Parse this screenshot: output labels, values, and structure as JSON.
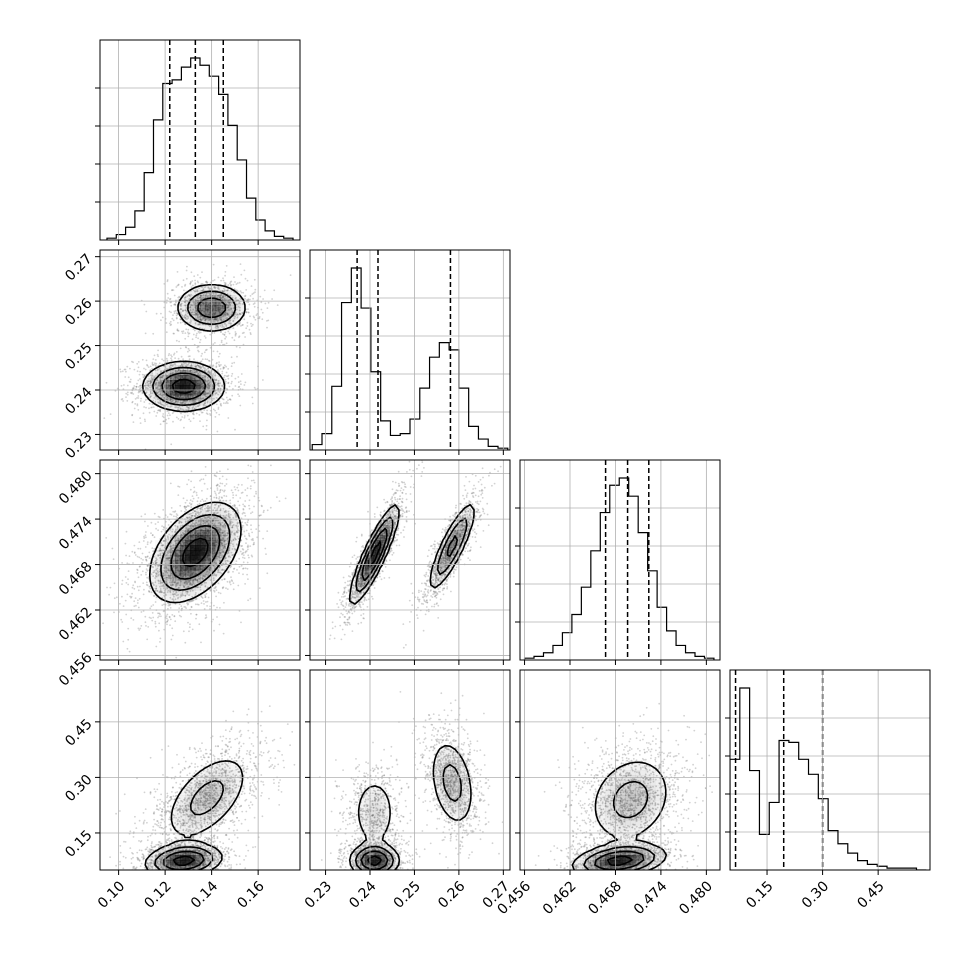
{
  "chart_data": {
    "type": "corner",
    "grid": true,
    "ink_color": "#000000",
    "scatter_color": "#7f7f7f",
    "parameters": [
      {
        "id": "p1",
        "range": [
          0.092,
          0.178
        ],
        "ticks": [
          "0.10",
          "0.12",
          "0.14",
          "0.16"
        ],
        "quantiles": [
          0.122,
          0.133,
          0.145
        ]
      },
      {
        "id": "p2",
        "range": [
          0.2265,
          0.2715
        ],
        "ticks": [
          "0.23",
          "0.24",
          "0.25",
          "0.26",
          "0.27"
        ],
        "quantiles": [
          0.2371,
          0.2418,
          0.2581
        ]
      },
      {
        "id": "p3",
        "range": [
          0.4554,
          0.4818
        ],
        "ticks": [
          "0.456",
          "0.462",
          "0.468",
          "0.474",
          "0.480"
        ],
        "quantiles": [
          0.4667,
          0.4696,
          0.4724
        ]
      },
      {
        "id": "p4",
        "range": [
          0.05,
          0.59
        ],
        "ticks": [
          "0.15",
          "0.30",
          "0.45"
        ],
        "quantiles": [
          0.065,
          0.195,
          0.3
        ]
      }
    ],
    "histograms": [
      {
        "param": "p1",
        "edges_range": [
          0.095,
          0.175
        ],
        "counts": [
          1,
          3,
          7,
          16,
          37,
          66,
          86,
          88,
          95,
          100,
          96,
          90,
          80,
          63,
          44,
          23,
          11,
          5,
          2,
          1
        ]
      },
      {
        "param": "p2",
        "edges_range": [
          0.227,
          0.271
        ],
        "counts": [
          3,
          9,
          35,
          81,
          100,
          78,
          43,
          16,
          8,
          9,
          17,
          34,
          51,
          59,
          55,
          34,
          13,
          6,
          2,
          1
        ]
      },
      {
        "param": "p3",
        "edges_range": [
          0.456,
          0.481
        ],
        "counts": [
          1,
          2,
          4,
          8,
          15,
          25,
          40,
          60,
          81,
          96,
          100,
          90,
          70,
          49,
          29,
          16,
          8,
          4,
          2,
          1
        ]
      },
      {
        "param": "p4",
        "edges_range": [
          0.05,
          0.58
        ],
        "counts": [
          59,
          97,
          53,
          19,
          36,
          69,
          68,
          59,
          51,
          38,
          21,
          14,
          9,
          5,
          3,
          2,
          1,
          1,
          1,
          0
        ]
      }
    ],
    "joint_panels": [
      {
        "x": "p1",
        "y": "p2",
        "modes": [
          {
            "cx": 0.128,
            "cy": 0.2408,
            "sx": 0.0085,
            "sy": 0.0027,
            "rho": 0.0,
            "w": 0.6
          },
          {
            "cx": 0.14,
            "cy": 0.2585,
            "sx": 0.0075,
            "sy": 0.0027,
            "rho": 0.0,
            "w": 0.4
          }
        ]
      },
      {
        "x": "p1",
        "y": "p3",
        "modes": [
          {
            "cx": 0.133,
            "cy": 0.4696,
            "sx": 0.0095,
            "sy": 0.0032,
            "rho": 0.45,
            "w": 1.0
          }
        ]
      },
      {
        "x": "p2",
        "y": "p3",
        "modes": [
          {
            "cx": 0.241,
            "cy": 0.4693,
            "sx": 0.0027,
            "sy": 0.0032,
            "rho": 0.88,
            "w": 0.6
          },
          {
            "cx": 0.2585,
            "cy": 0.4704,
            "sx": 0.0027,
            "sy": 0.003,
            "rho": 0.85,
            "w": 0.4
          }
        ]
      },
      {
        "x": "p1",
        "y": "p4",
        "modes": [
          {
            "cx": 0.128,
            "cy": 0.075,
            "sx": 0.008,
            "sy": 0.022,
            "rho": 0.2,
            "w": 0.45
          },
          {
            "cx": 0.138,
            "cy": 0.245,
            "sx": 0.01,
            "sy": 0.065,
            "rho": 0.55,
            "w": 0.55
          }
        ]
      },
      {
        "x": "p2",
        "y": "p4",
        "modes": [
          {
            "cx": 0.241,
            "cy": 0.075,
            "sx": 0.0027,
            "sy": 0.022,
            "rho": 0.0,
            "w": 0.35
          },
          {
            "cx": 0.241,
            "cy": 0.205,
            "sx": 0.0027,
            "sy": 0.055,
            "rho": 0.0,
            "w": 0.25
          },
          {
            "cx": 0.2585,
            "cy": 0.285,
            "sx": 0.0027,
            "sy": 0.065,
            "rho": -0.3,
            "w": 0.4
          }
        ]
      },
      {
        "x": "p3",
        "y": "p4",
        "modes": [
          {
            "cx": 0.4685,
            "cy": 0.075,
            "sx": 0.003,
            "sy": 0.022,
            "rho": 0.3,
            "w": 0.45
          },
          {
            "cx": 0.47,
            "cy": 0.24,
            "sx": 0.003,
            "sy": 0.065,
            "rho": 0.2,
            "w": 0.55
          }
        ]
      }
    ]
  }
}
